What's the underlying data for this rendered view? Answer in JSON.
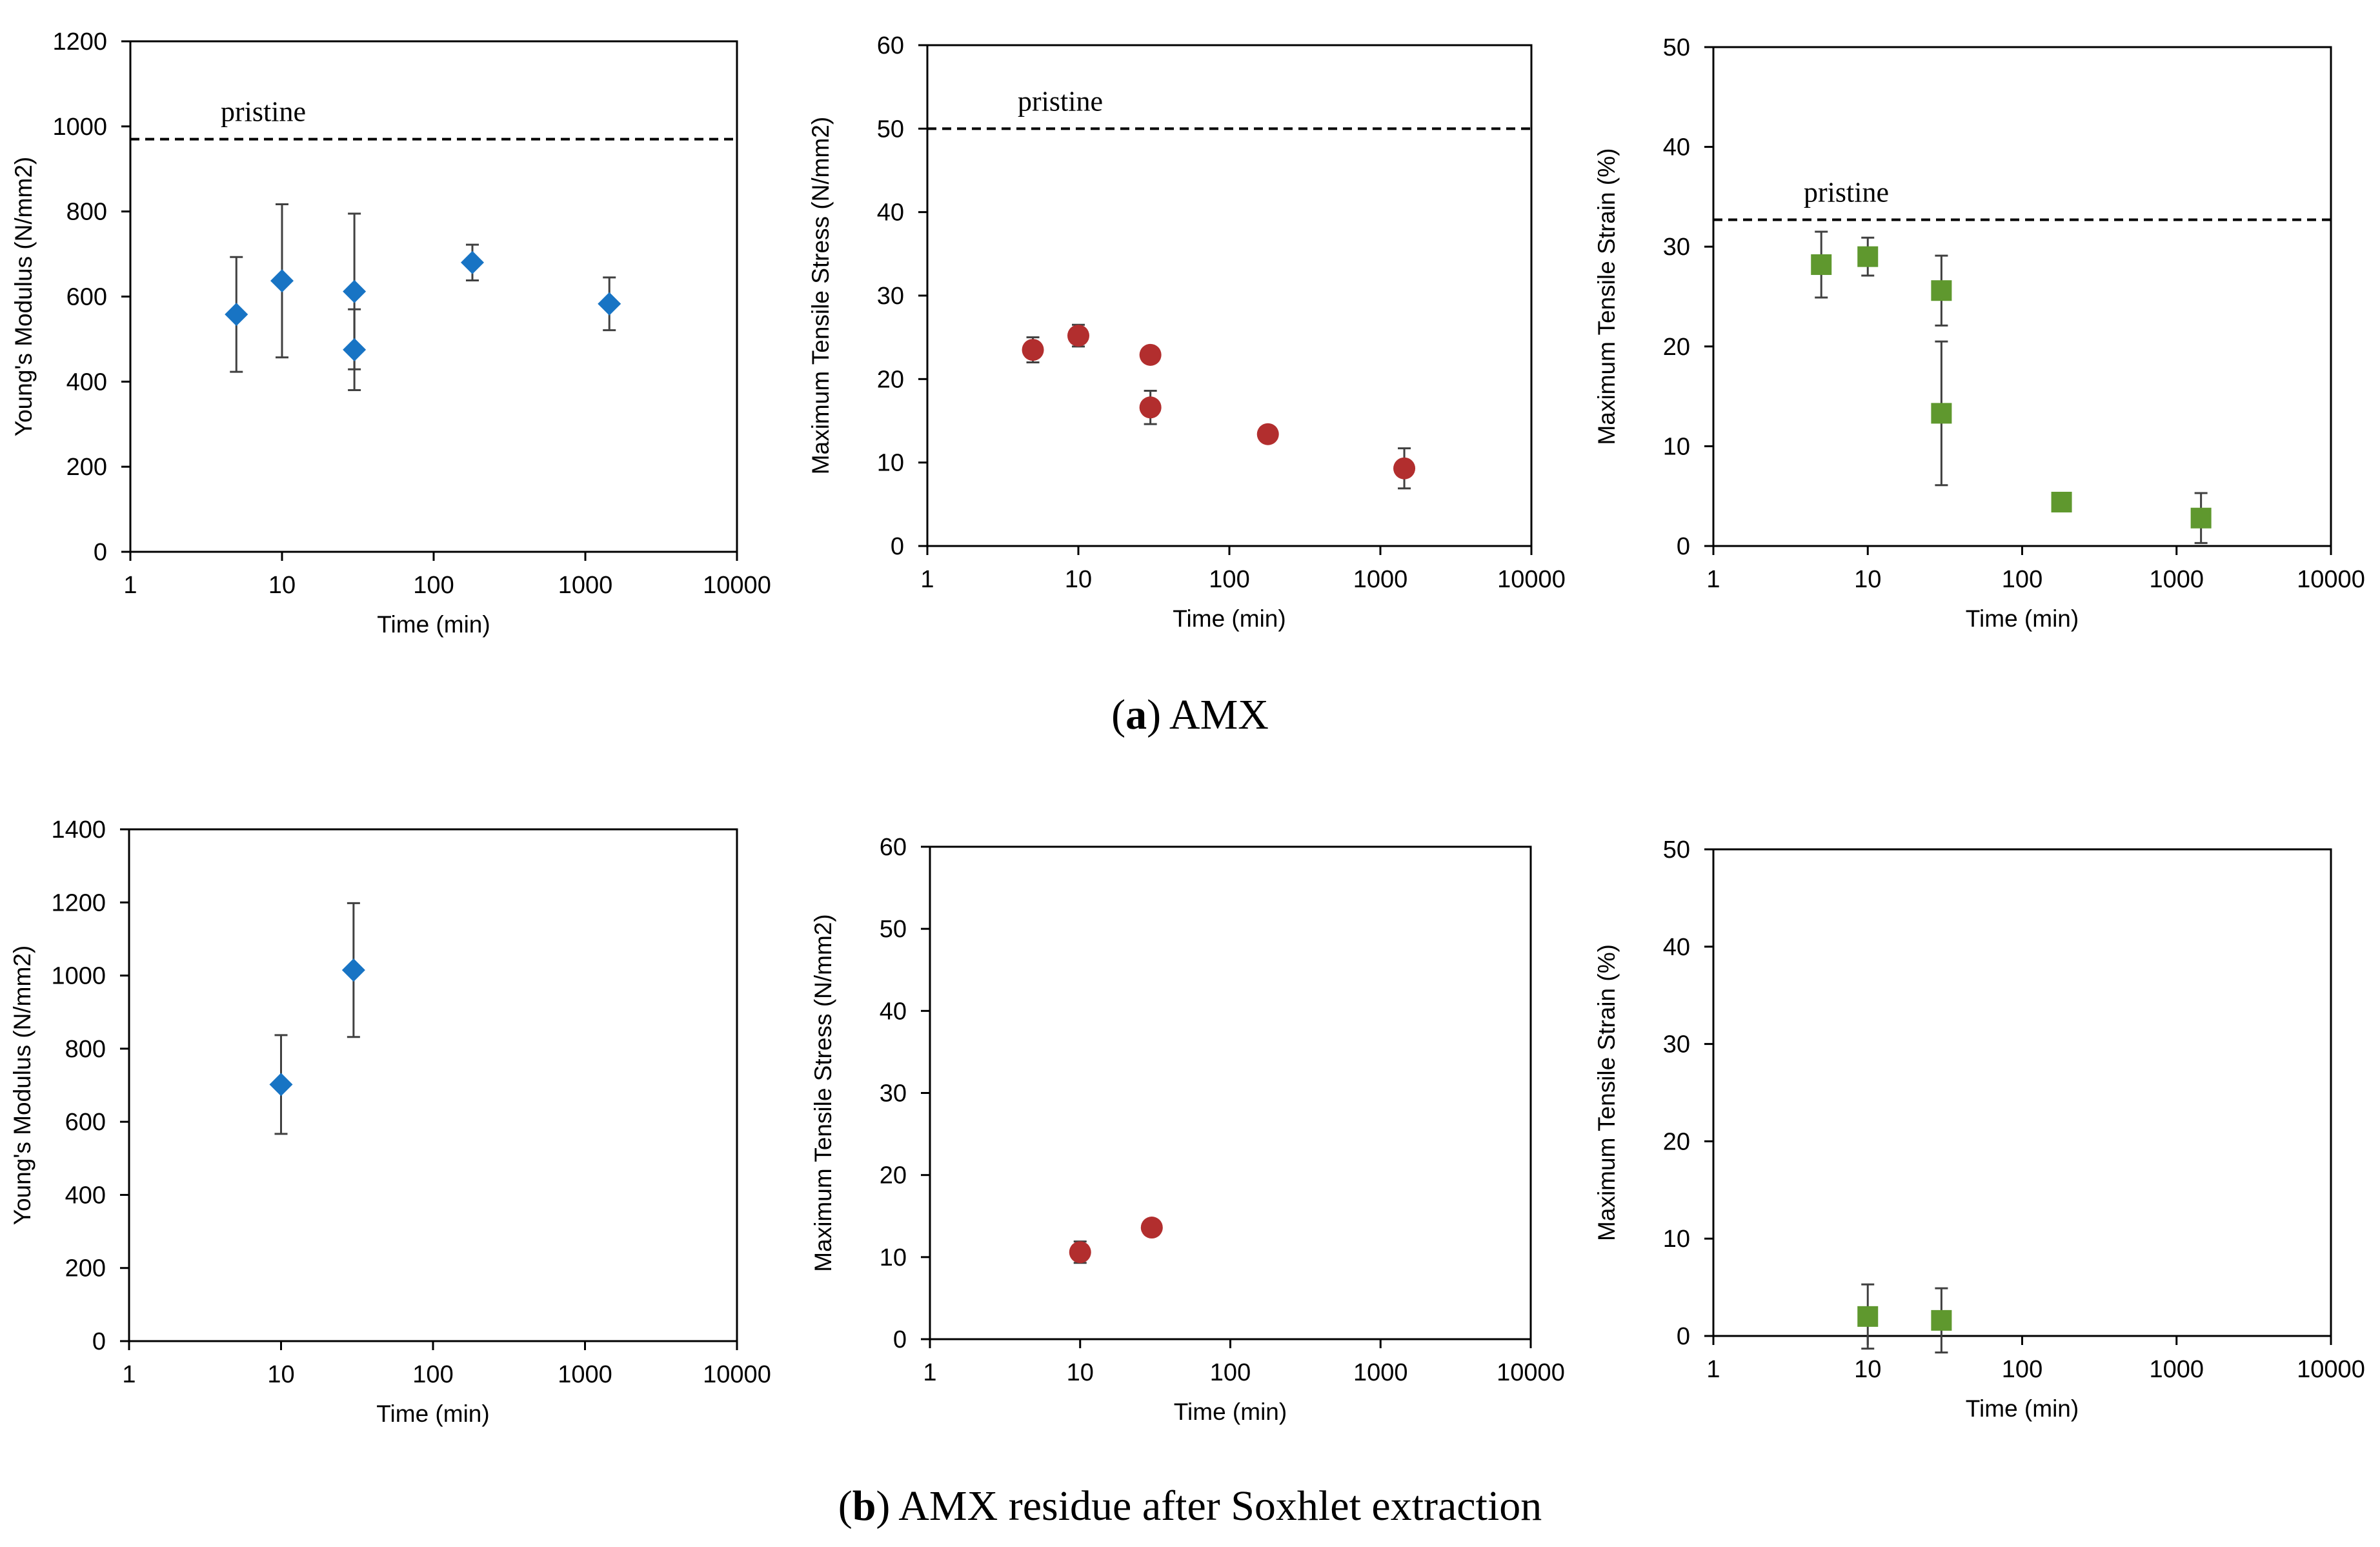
{
  "colors": {
    "modulus": "#1874c4",
    "stress": "#b22e2e",
    "strain": "#5f982e",
    "axis": "#000000",
    "error_bar": "#404040"
  },
  "captions": {
    "a": {
      "letter": "a",
      "text": "AMX"
    },
    "b": {
      "letter": "b",
      "text": "AMX residue after Soxhlet extraction"
    }
  },
  "chart_data": [
    {
      "id": "a-modulus",
      "panel": "a",
      "type": "scatter",
      "marker": "diamond",
      "color": "#1874c4",
      "ylabel": "Young's Modulus (N/mm2)",
      "xlabel": "Time  (min)",
      "xscale": "log",
      "xlim": [
        1,
        10000
      ],
      "ylim": [
        0,
        1200
      ],
      "xticks": [
        "1",
        "10",
        "100",
        "1000",
        "10000"
      ],
      "yticks": [
        "0",
        "200",
        "400",
        "600",
        "800",
        "1000",
        "1200"
      ],
      "reference": {
        "label": "pristine",
        "value": 970
      },
      "points": [
        {
          "x": 5,
          "y": 558,
          "err": 135
        },
        {
          "x": 10,
          "y": 637,
          "err": 180
        },
        {
          "x": 30,
          "y": 612,
          "err": 183
        },
        {
          "x": 30,
          "y": 475,
          "err": 95
        },
        {
          "x": 180,
          "y": 680,
          "err": 42
        },
        {
          "x": 1440,
          "y": 583,
          "err": 62
        }
      ]
    },
    {
      "id": "a-stress",
      "panel": "a",
      "type": "scatter",
      "marker": "circle",
      "color": "#b22e2e",
      "ylabel": "Maximum Tensile Stress (N/mm2)",
      "xlabel": "Time (min)",
      "xscale": "log",
      "xlim": [
        1,
        10000
      ],
      "ylim": [
        0,
        60
      ],
      "xticks": [
        "1",
        "10",
        "100",
        "1000",
        "10000"
      ],
      "yticks": [
        "0",
        "10",
        "20",
        "30",
        "40",
        "50",
        "60"
      ],
      "reference": {
        "label": "pristine",
        "value": 50
      },
      "points": [
        {
          "x": 5,
          "y": 23.5,
          "err": 1.5
        },
        {
          "x": 10,
          "y": 25.2,
          "err": 1.3
        },
        {
          "x": 30,
          "y": 22.9,
          "err": 0
        },
        {
          "x": 30,
          "y": 16.6,
          "err": 2
        },
        {
          "x": 180,
          "y": 13.4,
          "err": 0
        },
        {
          "x": 1440,
          "y": 9.3,
          "err": 2.4
        }
      ]
    },
    {
      "id": "a-strain",
      "panel": "a",
      "type": "scatter",
      "marker": "square",
      "color": "#5f982e",
      "ylabel": "Maximum Tensile Strain (%)",
      "xlabel": "Time (min)",
      "xscale": "log",
      "xlim": [
        1,
        10000
      ],
      "ylim": [
        0,
        50
      ],
      "xticks": [
        "1",
        "10",
        "100",
        "1000",
        "10000"
      ],
      "yticks": [
        "0",
        "10",
        "20",
        "30",
        "40",
        "50"
      ],
      "reference": {
        "label": "pristine",
        "value": 32.7
      },
      "points": [
        {
          "x": 5,
          "y": 28.2,
          "err": 3.3
        },
        {
          "x": 10,
          "y": 29,
          "err": 1.9
        },
        {
          "x": 30,
          "y": 25.6,
          "err": 3.5
        },
        {
          "x": 30,
          "y": 13.3,
          "err": 7.2
        },
        {
          "x": 180,
          "y": 4.4,
          "err": 0
        },
        {
          "x": 1440,
          "y": 2.8,
          "err": 2.5
        }
      ]
    },
    {
      "id": "b-modulus",
      "panel": "b",
      "type": "scatter",
      "marker": "diamond",
      "color": "#1874c4",
      "ylabel": "Young's Modulus (N/mm2)",
      "xlabel": "Time  (min)",
      "xscale": "log",
      "xlim": [
        1,
        10000
      ],
      "ylim": [
        0,
        1400
      ],
      "xticks": [
        "1",
        "10",
        "100",
        "1000",
        "10000"
      ],
      "yticks": [
        "0",
        "200",
        "400",
        "600",
        "800",
        "1000",
        "1200",
        "1400"
      ],
      "reference": null,
      "points": [
        {
          "x": 10,
          "y": 702,
          "err": 135
        },
        {
          "x": 30,
          "y": 1015,
          "err": 183
        }
      ]
    },
    {
      "id": "b-stress",
      "panel": "b",
      "type": "scatter",
      "marker": "circle",
      "color": "#b22e2e",
      "ylabel": "Maximum Tensile Stress (N/mm2)",
      "xlabel": "Time (min)",
      "xscale": "log",
      "xlim": [
        1,
        10000
      ],
      "ylim": [
        0,
        60
      ],
      "xticks": [
        "1",
        "10",
        "100",
        "1000",
        "10000"
      ],
      "yticks": [
        "0",
        "10",
        "20",
        "30",
        "40",
        "50",
        "60"
      ],
      "reference": null,
      "points": [
        {
          "x": 10,
          "y": 10.6,
          "err": 1.3
        },
        {
          "x": 30,
          "y": 13.6,
          "err": 0
        }
      ]
    },
    {
      "id": "b-strain",
      "panel": "b",
      "type": "scatter",
      "marker": "square",
      "color": "#5f982e",
      "ylabel": "Maximum Tensile Strain (%)",
      "xlabel": "Time (min)",
      "xscale": "log",
      "xlim": [
        1,
        10000
      ],
      "ylim": [
        0,
        50
      ],
      "xticks": [
        "1",
        "10",
        "100",
        "1000",
        "10000"
      ],
      "yticks": [
        "0",
        "10",
        "20",
        "30",
        "40",
        "50"
      ],
      "reference": null,
      "points": [
        {
          "x": 10,
          "y": 2,
          "err": 3.3
        },
        {
          "x": 30,
          "y": 1.6,
          "err": 3.3
        }
      ]
    }
  ]
}
